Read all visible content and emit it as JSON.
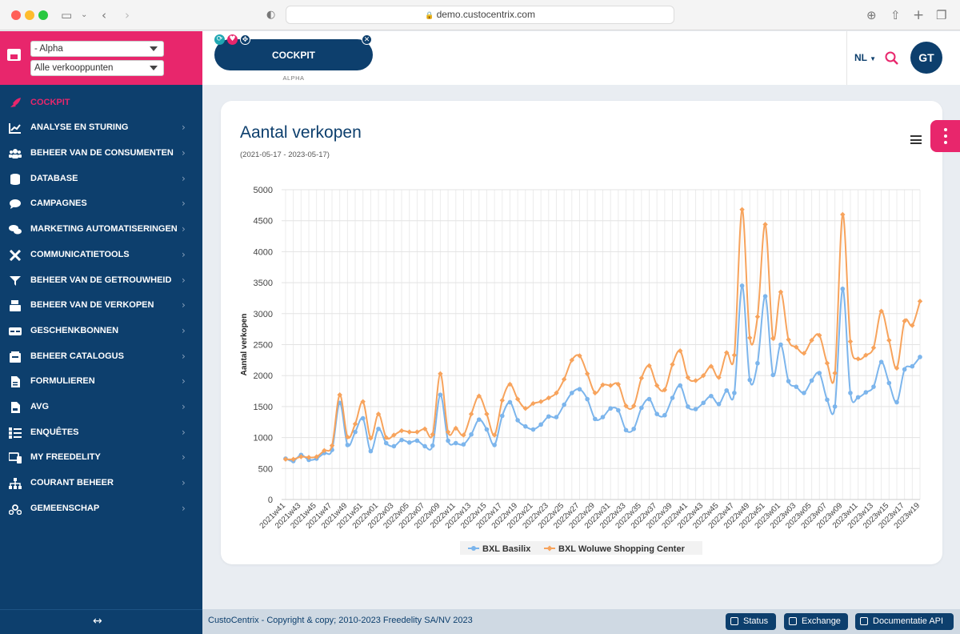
{
  "browser": {
    "url": "demo.custocentrix.com"
  },
  "sidebar": {
    "store_select": "- Alpha",
    "pos_select": "Alle verkooppunten",
    "items": [
      {
        "label": "COCKPIT"
      },
      {
        "label": "ANALYSE EN STURING"
      },
      {
        "label": "BEHEER VAN DE CONSUMENTEN"
      },
      {
        "label": "DATABASE"
      },
      {
        "label": "CAMPAGNES"
      },
      {
        "label": "MARKETING AUTOMATISERINGEN"
      },
      {
        "label": "COMMUNICATIETOOLS"
      },
      {
        "label": "BEHEER VAN DE GETROUWHEID"
      },
      {
        "label": "BEHEER VAN DE VERKOPEN"
      },
      {
        "label": "GESCHENKBONNEN"
      },
      {
        "label": "BEHEER CATALOGUS"
      },
      {
        "label": "FORMULIEREN"
      },
      {
        "label": "AVG"
      },
      {
        "label": "ENQUÊTES"
      },
      {
        "label": "MY FREEDELITY"
      },
      {
        "label": "COURANT BEHEER"
      },
      {
        "label": "GEMEENSCHAP"
      }
    ]
  },
  "header": {
    "cockpit_label": "COCKPIT",
    "cockpit_sub": "ALPHA",
    "lang": "NL",
    "avatar": "GT"
  },
  "footer": {
    "copyright": "CustoCentrix - Copyright & copy; 2010-2023 Freedelity SA/NV 2023",
    "status": "Status",
    "exchange": "Exchange",
    "api": "Documentatie API"
  },
  "colors": {
    "brand_pink": "#e8266c",
    "brand_navy": "#0d3f6d",
    "series_blue": "#7cb5ec",
    "series_orange": "#f7a35c"
  },
  "chart_data": {
    "type": "line",
    "title": "Aantal verkopen",
    "subtitle": "(2021-05-17 - 2023-05-17)",
    "ylabel": "Aantal verkopen",
    "xlabel": "",
    "ylim": [
      0,
      5000
    ],
    "yticks": [
      0,
      500,
      1000,
      1500,
      2000,
      2500,
      3000,
      3500,
      4000,
      4500,
      5000
    ],
    "grid": true,
    "legend_position": "bottom-center",
    "x": [
      "2021w41",
      "2021w42",
      "2021w43",
      "2021w44",
      "2021w45",
      "2021w46",
      "2021w47",
      "2021w48",
      "2021w49",
      "2021w50",
      "2021w51",
      "2021w52",
      "2022w01",
      "2022w02",
      "2022w03",
      "2022w04",
      "2022w05",
      "2022w06",
      "2022w07",
      "2022w08",
      "2022w09",
      "2022w10",
      "2022w11",
      "2022w12",
      "2022w13",
      "2022w14",
      "2022w15",
      "2022w16",
      "2022w17",
      "2022w18",
      "2022w19",
      "2022w20",
      "2022w21",
      "2022w22",
      "2022w23",
      "2022w24",
      "2022w25",
      "2022w26",
      "2022w27",
      "2022w28",
      "2022w29",
      "2022w30",
      "2022w31",
      "2022w32",
      "2022w33",
      "2022w34",
      "2022w35",
      "2022w36",
      "2022w37",
      "2022w38",
      "2022w39",
      "2022w40",
      "2022w41",
      "2022w42",
      "2022w43",
      "2022w44",
      "2022w45",
      "2022w46",
      "2022w47",
      "2022w48",
      "2022w49",
      "2022w50",
      "2022w51",
      "2022w52",
      "2023w01",
      "2023w02",
      "2023w03",
      "2023w04",
      "2023w05",
      "2023w06",
      "2023w07",
      "2023w08",
      "2023w09",
      "2023w10",
      "2023w11",
      "2023w12",
      "2023w13",
      "2023w14",
      "2023w15",
      "2023w16",
      "2023w17",
      "2023w18",
      "2023w19"
    ],
    "x_tick_labels": [
      "2021w41",
      "2021w43",
      "2021w45",
      "2021w47",
      "2021w49",
      "2021w51",
      "2022w01",
      "2022w03",
      "2022w05",
      "2022w07",
      "2022w09",
      "2022w11",
      "2022w13",
      "2022w15",
      "2022w17",
      "2022w19",
      "2022w21",
      "2022w23",
      "2022w25",
      "2022w27",
      "2022w29",
      "2022w31",
      "2022w33",
      "2022w35",
      "2022w37",
      "2022w39",
      "2022w41",
      "2022w43",
      "2022w45",
      "2022w47",
      "2022w49",
      "2022w51",
      "2023w01",
      "2023w03",
      "2023w05",
      "2023w07",
      "2023w09",
      "2023w11",
      "2023w13",
      "2023w15",
      "2023w17",
      "2023w19"
    ],
    "series": [
      {
        "name": "BXL Basilix",
        "color": "#7cb5ec",
        "values": [
          660,
          620,
          720,
          640,
          660,
          750,
          800,
          1560,
          880,
          1090,
          1310,
          780,
          1140,
          910,
          860,
          960,
          920,
          950,
          860,
          870,
          1690,
          950,
          910,
          890,
          1050,
          1290,
          1130,
          880,
          1350,
          1570,
          1280,
          1180,
          1130,
          1210,
          1340,
          1330,
          1530,
          1720,
          1780,
          1620,
          1300,
          1330,
          1470,
          1440,
          1120,
          1140,
          1480,
          1620,
          1380,
          1360,
          1640,
          1840,
          1500,
          1460,
          1560,
          1670,
          1540,
          1760,
          1720,
          3450,
          1930,
          2200,
          3280,
          2010,
          2500,
          1910,
          1820,
          1720,
          1920,
          2040,
          1610,
          1500,
          3400,
          1720,
          1650,
          1730,
          1820,
          2220,
          1880,
          1570,
          2100,
          2150,
          2300
        ]
      },
      {
        "name": "BXL Woluwe Shopping Center",
        "color": "#f7a35c",
        "values": [
          650,
          650,
          690,
          680,
          690,
          790,
          870,
          1690,
          1010,
          1220,
          1580,
          990,
          1380,
          1000,
          1040,
          1110,
          1090,
          1090,
          1140,
          1050,
          2030,
          1090,
          1150,
          1040,
          1380,
          1670,
          1380,
          1040,
          1600,
          1860,
          1620,
          1470,
          1550,
          1580,
          1640,
          1720,
          1940,
          2250,
          2320,
          2030,
          1720,
          1850,
          1840,
          1860,
          1510,
          1510,
          1960,
          2160,
          1840,
          1770,
          2180,
          2400,
          1970,
          1920,
          2000,
          2150,
          1970,
          2370,
          2330,
          4680,
          2610,
          2950,
          4440,
          2600,
          3350,
          2580,
          2460,
          2360,
          2570,
          2650,
          2200,
          2040,
          4600,
          2550,
          2270,
          2330,
          2450,
          3040,
          2570,
          2120,
          2880,
          2810,
          3200
        ]
      }
    ]
  }
}
